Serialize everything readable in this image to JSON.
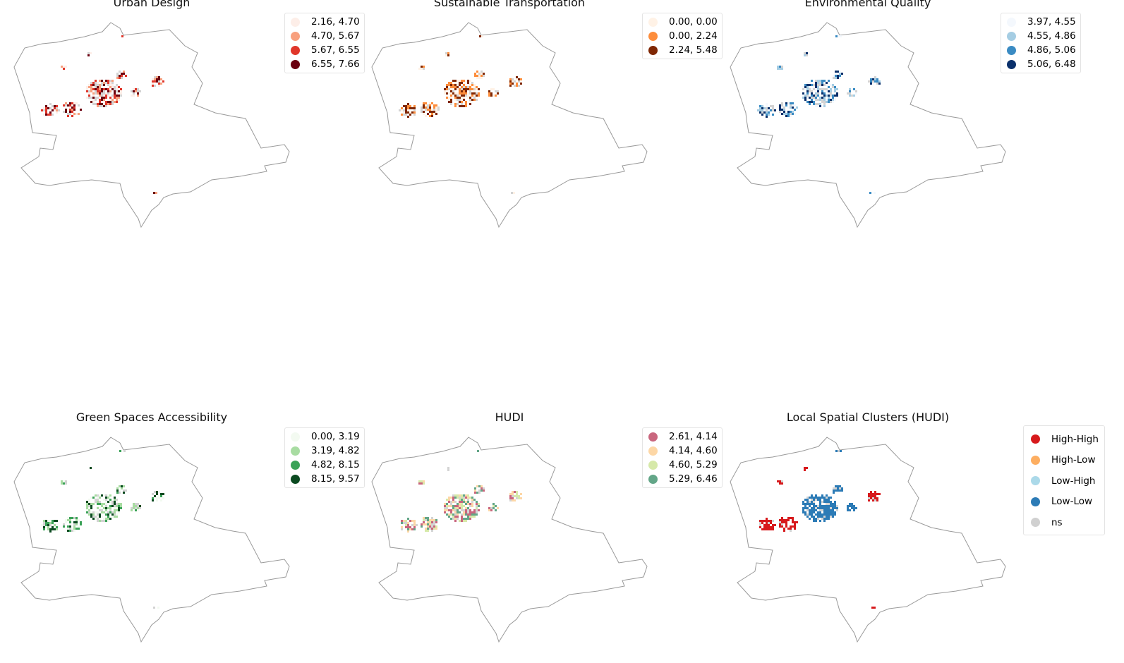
{
  "panels": [
    {
      "title": "Urban Design",
      "legend": [
        {
          "label": "2.16, 4.70",
          "color": "#fdeee8"
        },
        {
          "label": "4.70, 5.67",
          "color": "#f8a07e"
        },
        {
          "label": "5.67, 6.55",
          "color": "#e0362a"
        },
        {
          "label": "6.55, 7.66",
          "color": "#6b0010"
        }
      ]
    },
    {
      "title": "Sustainable Transportation",
      "legend": [
        {
          "label": "0.00, 0.00",
          "color": "#fff2e6"
        },
        {
          "label": "0.00, 2.24",
          "color": "#fd8d3c"
        },
        {
          "label": "2.24, 5.48",
          "color": "#7f2704"
        }
      ]
    },
    {
      "title": "Environmental Quality",
      "legend": [
        {
          "label": "3.97, 4.55",
          "color": "#f4f8fd"
        },
        {
          "label": "4.55, 4.86",
          "color": "#a5cde3"
        },
        {
          "label": "4.86, 5.06",
          "color": "#3a8bc3"
        },
        {
          "label": "5.06, 6.48",
          "color": "#0a306b"
        }
      ]
    },
    {
      "title": "Green Spaces Accessibility",
      "legend": [
        {
          "label": "0.00, 3.19",
          "color": "#f3faf1"
        },
        {
          "label": "3.19, 4.82",
          "color": "#a8dca2"
        },
        {
          "label": "4.82, 8.15",
          "color": "#3aa257"
        },
        {
          "label": "8.15, 9.57",
          "color": "#0b4a20"
        }
      ]
    },
    {
      "title": "HUDI",
      "legend": [
        {
          "label": "2.61, 4.14",
          "color": "#c9667e"
        },
        {
          "label": "4.14, 4.60",
          "color": "#fdd7a6"
        },
        {
          "label": "4.60, 5.29",
          "color": "#d6e9a9"
        },
        {
          "label": "5.29, 6.46",
          "color": "#63a688"
        }
      ]
    },
    {
      "title": "Local Spatial Clusters (HUDI)",
      "legend": [
        {
          "label": "High-High",
          "color": "#d7191c"
        },
        {
          "label": "High-Low",
          "color": "#fdae61"
        },
        {
          "label": "Low-High",
          "color": "#abd9e9"
        },
        {
          "label": "Low-Low",
          "color": "#2c7bb6"
        },
        {
          "label": "ns",
          "color": "#d0d0d0"
        }
      ]
    }
  ]
}
